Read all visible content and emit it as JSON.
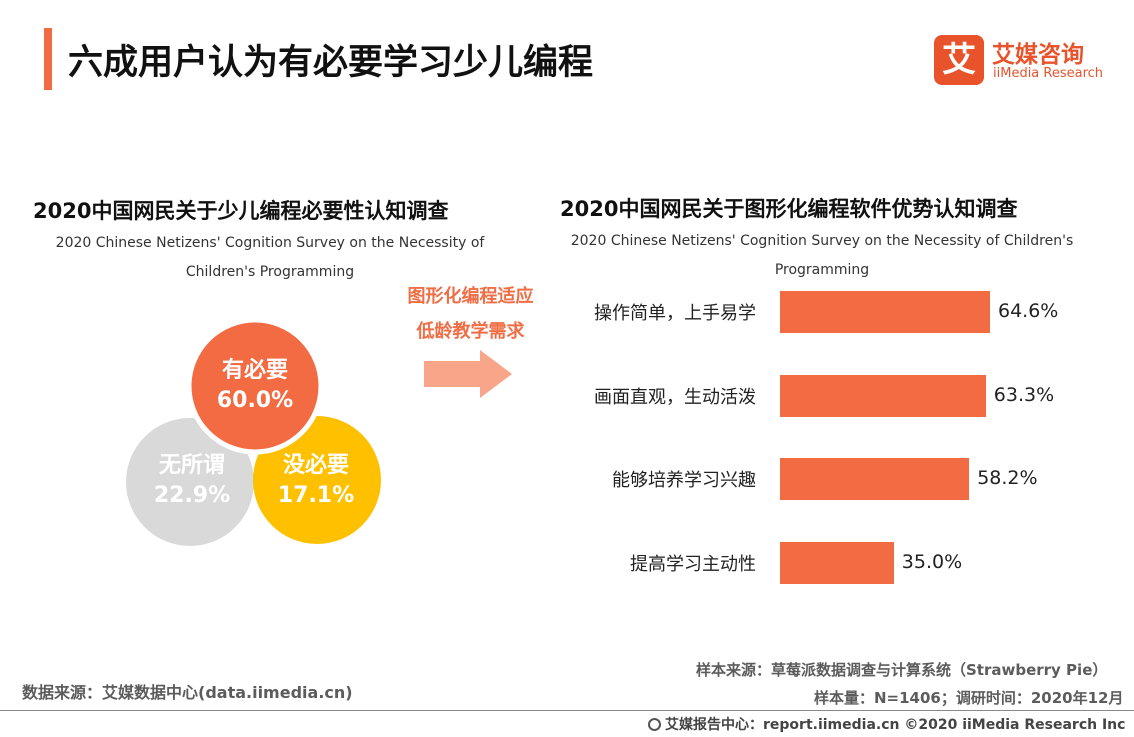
{
  "header": {
    "title": "六成用户认为有必要学习少儿编程",
    "logo": {
      "mark": "艾",
      "cn": "艾媒咨询",
      "en": "iiMedia Research"
    }
  },
  "left_chart": {
    "title": "2020中国网民关于少儿编程必要性认知调查",
    "subtitle_line1": "2020 Chinese Netizens' Cognition Survey on the Necessity of",
    "subtitle_line2": "Children's Programming"
  },
  "right_chart": {
    "title": "2020中国网民关于图形化编程软件优势认知调查",
    "subtitle_line1": "2020 Chinese Netizens' Cognition Survey on the Necessity of Children's",
    "subtitle_line2": "Programming"
  },
  "arrow_text": {
    "line1": "图形化编程适应",
    "line2": "低龄教学需求"
  },
  "chart_data": [
    {
      "type": "pie",
      "title": "2020中国网民关于少儿编程必要性认知调查",
      "categories": [
        "有必要",
        "无所谓",
        "没必要"
      ],
      "values": [
        60.0,
        22.9,
        17.1
      ],
      "labels": [
        "60.0%",
        "22.9%",
        "17.1%"
      ],
      "colors": [
        "#f26b43",
        "#d9d9d9",
        "#ffc000"
      ]
    },
    {
      "type": "bar",
      "orientation": "horizontal",
      "title": "2020中国网民关于图形化编程软件优势认知调查",
      "categories": [
        "操作简单，上手易学",
        "画面直观，生动活泼",
        "能够培养学习兴趣",
        "提高学习主动性"
      ],
      "values": [
        64.6,
        63.3,
        58.2,
        35.0
      ],
      "labels": [
        "64.6%",
        "63.3%",
        "58.2%",
        "35.0%"
      ],
      "color": "#f26b43",
      "xlim": [
        0,
        100
      ]
    }
  ],
  "sources": {
    "data_source": "数据来源：艾媒数据中心(data.iimedia.cn)",
    "sample_source": "样本来源：草莓派数据调查与计算系统（Strawberry Pie）",
    "sample_info": "样本量：N=1406；调研时间：2020年12月"
  },
  "footer": {
    "text": "艾媒报告中心：report.iimedia.cn ©2020 iiMedia Research Inc"
  }
}
